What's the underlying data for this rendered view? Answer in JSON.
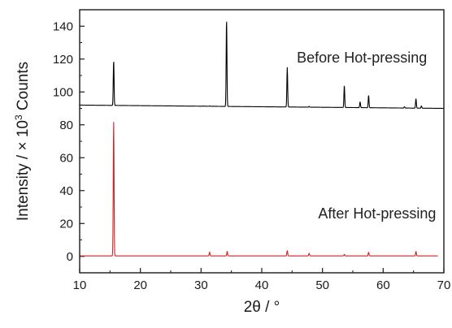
{
  "chart_data": {
    "type": "line",
    "xlabel": "2θ / °",
    "ylabel_main": "Intensity / × 10",
    "ylabel_sup": "3",
    "ylabel_tail": " Counts",
    "xlim": [
      10,
      70
    ],
    "ylim": [
      -10,
      150
    ],
    "xticks": [
      10,
      20,
      30,
      40,
      50,
      60,
      70
    ],
    "yticks": [
      0,
      20,
      40,
      60,
      80,
      100,
      120,
      140
    ],
    "grid": false,
    "annotations": [
      {
        "text": "Before Hot-pressing",
        "x": 56.5,
        "y": 118
      },
      {
        "text": "After Hot-pressing",
        "x": 59,
        "y": 23
      }
    ],
    "series": [
      {
        "color": "#000000",
        "baseline_start": 92,
        "baseline_end": 90,
        "x_range": [
          10,
          70
        ],
        "peaks": [
          {
            "x": 15.6,
            "y": 119
          },
          {
            "x": 30.3,
            "y": 91.5
          },
          {
            "x": 31.4,
            "y": 91.5
          },
          {
            "x": 34.2,
            "y": 144
          },
          {
            "x": 44.2,
            "y": 115
          },
          {
            "x": 47.8,
            "y": 91.2
          },
          {
            "x": 53.6,
            "y": 104
          },
          {
            "x": 56.2,
            "y": 94
          },
          {
            "x": 57.6,
            "y": 98
          },
          {
            "x": 63.5,
            "y": 91
          },
          {
            "x": 65.4,
            "y": 96
          },
          {
            "x": 66.3,
            "y": 91.5
          }
        ]
      },
      {
        "color": "#d42020",
        "baseline_start": 0.3,
        "baseline_end": 0.3,
        "x_range": [
          10,
          69
        ],
        "peaks": [
          {
            "x": 15.6,
            "y": 82
          },
          {
            "x": 31.4,
            "y": 2.5
          },
          {
            "x": 34.3,
            "y": 3
          },
          {
            "x": 44.2,
            "y": 3.5
          },
          {
            "x": 47.8,
            "y": 1.8
          },
          {
            "x": 53.6,
            "y": 1.2
          },
          {
            "x": 57.6,
            "y": 2.5
          },
          {
            "x": 65.4,
            "y": 3
          }
        ]
      }
    ]
  }
}
